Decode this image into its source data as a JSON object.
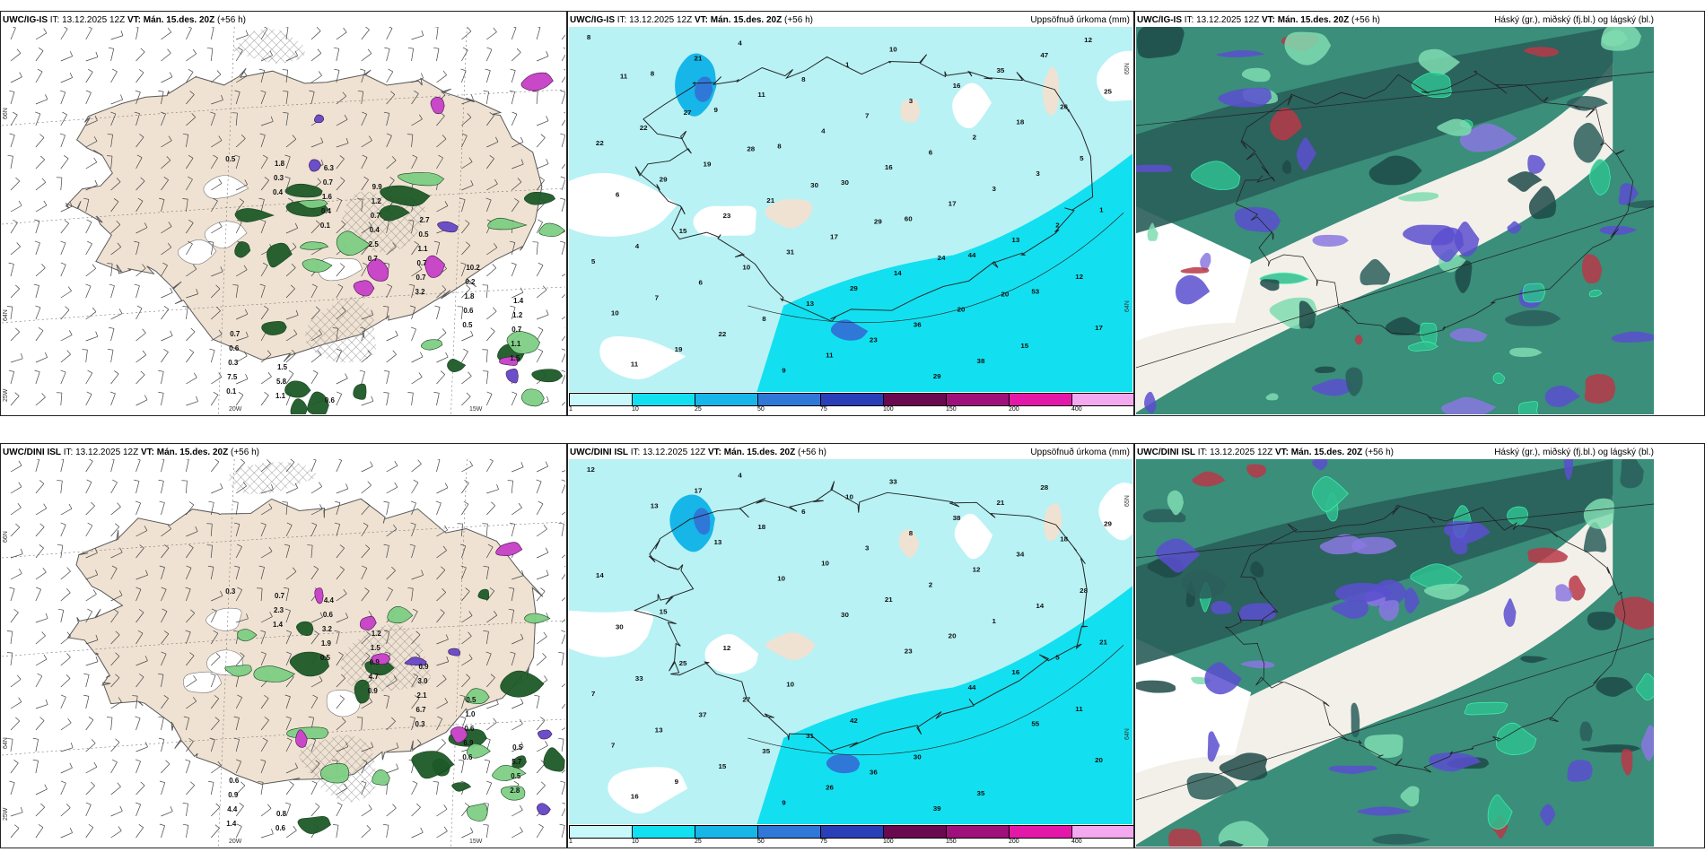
{
  "panels": [
    {
      "id": "r1c1",
      "model": "UWC/IG-IS",
      "init": "IT: 13.12.2025 12Z",
      "valid": "VT: Mán. 15.des. 20Z",
      "lead": "(+56 h)",
      "right": "",
      "type": "wind",
      "lat_labels": [
        "66N",
        "64N",
        "25W"
      ],
      "lon_labels": [
        "20W",
        "15W"
      ],
      "values": [
        "0.5",
        "0.4",
        "0.1",
        "0.7",
        "3.2",
        "0.5",
        "1.5",
        "0.1",
        "0.3",
        "0.4",
        "2.5",
        "0.7",
        "0.6",
        "1.1",
        "7.5",
        "1.8",
        "1.6",
        "0.4",
        "0.7",
        "1.8",
        "0.7",
        "0.3",
        "1.1",
        "0.7",
        "0.7",
        "1.1",
        "0.2",
        "1.2",
        "0.6",
        "5.8",
        "6.3",
        "1.2",
        "0.5",
        "10.2",
        "1.4",
        "0.7",
        "1.5",
        "0.6",
        "9.9",
        "2.7"
      ]
    },
    {
      "id": "r1c2",
      "model": "UWC/IG-IS",
      "init": "IT: 13.12.2025 12Z",
      "valid": "VT: Mán. 15.des. 20Z",
      "lead": "(+56 h)",
      "right": "Uppsöfnuð úrkoma (mm)",
      "type": "precip",
      "lat_labels": [
        "65N",
        "64N"
      ],
      "values": [
        "8",
        "8",
        "9",
        "8",
        "30",
        "60",
        "44",
        "53",
        "17",
        "11",
        "21",
        "11",
        "4",
        "16",
        "17",
        "13",
        "12",
        "10",
        "19",
        "4",
        "8",
        "7",
        "6",
        "3",
        "2",
        "5",
        "7",
        "22",
        "9",
        "1",
        "3",
        "2",
        "3",
        "1",
        "4",
        "6",
        "8",
        "11",
        "10",
        "16",
        "18",
        "5",
        "6",
        "15",
        "10",
        "13",
        "23",
        "29",
        "35",
        "26",
        "22",
        "29",
        "23",
        "31",
        "29",
        "36",
        "38",
        "47",
        "25",
        "22",
        "19",
        "21",
        "17",
        "14",
        "20",
        "15",
        "12",
        "11",
        "27",
        "28",
        "30",
        "29",
        "24",
        "20"
      ],
      "colorbar": [
        "1",
        "10",
        "25",
        "50",
        "75",
        "100",
        "150",
        "200",
        "400"
      ]
    },
    {
      "id": "r1c3",
      "model": "UWC/IG-IS",
      "init": "IT: 13.12.2025 12Z",
      "valid": "VT: Mán. 15.des. 20Z",
      "lead": "(+56 h)",
      "right": "Háský (gr.), miðský (fj.bl.) og lágský (bl.)",
      "type": "cloud"
    },
    {
      "id": "r2c1",
      "model": "UWC/DINI ISL",
      "init": "IT: 13.12.2025 12Z",
      "valid": "VT: Mán. 15.des. 20Z",
      "lead": "(+56 h)",
      "right": "",
      "type": "wind",
      "lat_labels": [
        "66N",
        "64N",
        "25W"
      ],
      "lon_labels": [
        "20W",
        "15W"
      ],
      "values": [
        "0.3",
        "1.4",
        "0.5",
        "0.9",
        "0.3",
        "0.6",
        "2.8",
        "1.4",
        "2.3",
        "1.9",
        "4.7",
        "6.7",
        "6.9",
        "0.5",
        "4.4",
        "0.7",
        "3.2",
        "0.9",
        "2.1",
        "0.6",
        "5.7",
        "0.9",
        "0.6",
        "0.6",
        "1.5",
        "3.0",
        "1.0",
        "0.5",
        "0.6",
        "0.8",
        "4.4",
        "1.2",
        "0.9",
        "0.5"
      ],
      "colorbar": []
    },
    {
      "id": "r2c2",
      "model": "UWC/DINI ISL",
      "init": "IT: 13.12.2025 12Z",
      "valid": "VT: Mán. 15.des. 20Z",
      "lead": "(+56 h)",
      "right": "Uppsöfnuð úrkoma (mm)",
      "type": "precip",
      "lat_labels": [
        "65N",
        "64N"
      ],
      "values": [
        "12",
        "13",
        "13",
        "10",
        "30",
        "23",
        "44",
        "55",
        "20",
        "16",
        "17",
        "18",
        "10",
        "21",
        "20",
        "16",
        "11",
        "7",
        "9",
        "4",
        "6",
        "3",
        "2",
        "1",
        "5",
        "7",
        "13",
        "15",
        "9",
        "10",
        "8",
        "12",
        "14",
        "21",
        "33",
        "37",
        "35",
        "26",
        "33",
        "38",
        "34",
        "28",
        "30",
        "25",
        "27",
        "31",
        "36",
        "39",
        "21",
        "18",
        "14",
        "15",
        "12",
        "10",
        "42",
        "30",
        "35",
        "28",
        "29"
      ],
      "colorbar": [
        "1",
        "10",
        "25",
        "50",
        "75",
        "100",
        "150",
        "200",
        "400"
      ]
    },
    {
      "id": "r2c3",
      "model": "UWC/DINI ISL",
      "init": "IT: 13.12.2025 12Z",
      "valid": "VT: Mán. 15.des. 20Z",
      "lead": "(+56 h)",
      "right": "Háský (gr.), miðský (fj.bl.) og lágský (bl.)",
      "type": "cloud"
    }
  ],
  "colors": {
    "land": "#efe2d2",
    "precip_light": "#b8f2f5",
    "precip_mid": "#12e0f0",
    "precip_blue": "#2f78d8",
    "purple": "#c848c8",
    "dark_green": "#1e5a28",
    "cloud_teal": "#3a8e7a",
    "cloud_dark": "#2a5e5a",
    "cloud_blue": "#5b4fcf",
    "cloud_red": "#b83848"
  },
  "colorbar_colors": [
    "#c8f8fa",
    "#12e0f0",
    "#16b6e8",
    "#2f78d8",
    "#2a3eb8",
    "#6a0850",
    "#a0107a",
    "#e418a8",
    "#f3a8ef"
  ]
}
